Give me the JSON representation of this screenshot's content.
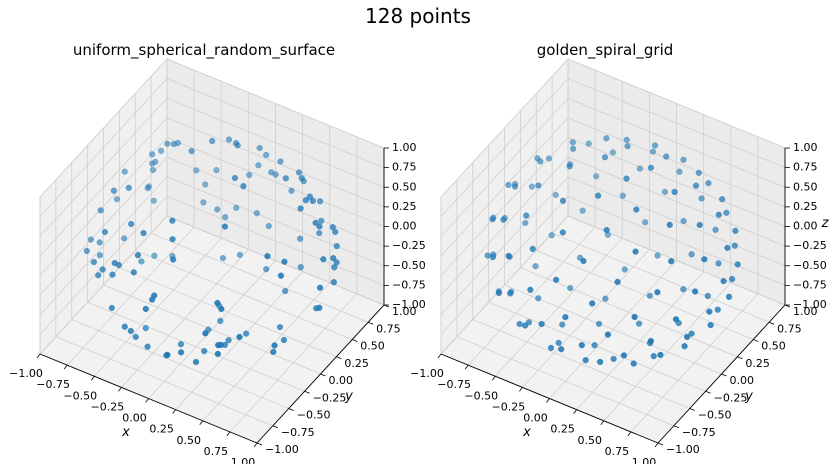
{
  "figure": {
    "suptitle": "128 points"
  },
  "chart_data": [
    {
      "type": "scatter3d",
      "title": "uniform_spherical_random_surface",
      "xlabel": "x",
      "ylabel": "y",
      "zlabel": "",
      "xlim": [
        -1,
        1
      ],
      "ylim": [
        -1,
        1
      ],
      "zlim": [
        -1,
        1
      ],
      "x_ticks": [
        "−1.00",
        "−0.75",
        "−0.50",
        "−0.25",
        "0.00",
        "0.25",
        "0.50",
        "0.75",
        "1.00"
      ],
      "y_ticks": [
        "−1.00",
        "−0.75",
        "−0.50",
        "−0.25",
        "0.00",
        "0.25",
        "0.50",
        "0.75",
        "1.00"
      ],
      "z_ticks": [
        "−1.00",
        "−0.75",
        "−0.50",
        "−0.25",
        "0.00",
        "0.25",
        "0.50",
        "0.75",
        "1.00"
      ],
      "z_ticks_display": [
        "−1.00",
        "−0.75",
        "−0.50",
        "−0.25",
        "0.00",
        "0.25",
        "0.50",
        "0.75",
        "1.00"
      ],
      "n_points": 128,
      "sampling": "uniform_random_on_unit_sphere",
      "seed": 7,
      "grid": true,
      "marker_color": "#1f77b4"
    },
    {
      "type": "scatter3d",
      "title": "golden_spiral_grid",
      "xlabel": "x",
      "ylabel": "y",
      "zlabel": "z",
      "xlim": [
        -1,
        1
      ],
      "ylim": [
        -1,
        1
      ],
      "zlim": [
        -1,
        1
      ],
      "x_ticks": [
        "−1.00",
        "−0.75",
        "−0.50",
        "−0.25",
        "0.00",
        "0.25",
        "0.50",
        "0.75",
        "1.00"
      ],
      "y_ticks": [
        "−1.00",
        "−0.75",
        "−0.50",
        "−0.25",
        "0.00",
        "0.25",
        "0.50",
        "0.75",
        "1.00"
      ],
      "z_ticks": [
        "−1.00",
        "−0.75",
        "−0.50",
        "−0.25",
        "0.00",
        "0.25",
        "0.50",
        "0.75",
        "1.00"
      ],
      "n_points": 128,
      "sampling": "golden_spiral",
      "grid": true,
      "marker_color": "#1f77b4"
    }
  ]
}
